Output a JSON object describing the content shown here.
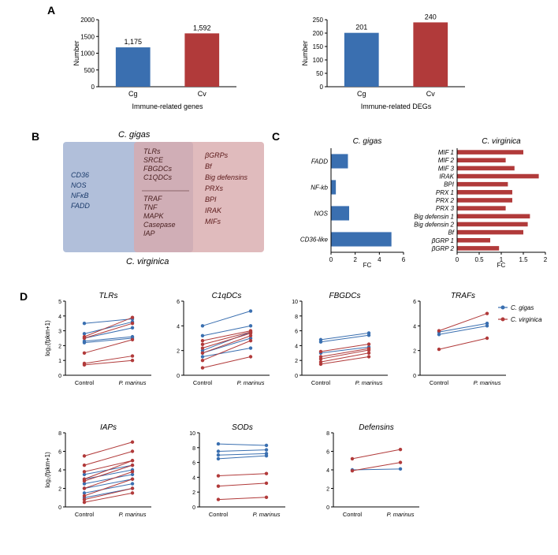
{
  "colors": {
    "blue": "#3a6fb0",
    "red": "#b13a3a",
    "blue_light": "#a9b8d6",
    "red_light": "#d8aaac",
    "overlap": "#b88a9a",
    "text": "#000000",
    "axis": "#000000"
  },
  "panelA": {
    "label": "A",
    "left_chart": {
      "bars": [
        {
          "label": "Cg",
          "value": 1175,
          "value_label": "1,175",
          "color": "#3a6fb0"
        },
        {
          "label": "Cv",
          "value": 1592,
          "value_label": "1,592",
          "color": "#b13a3a"
        }
      ],
      "ylabel": "Number",
      "xlabel": "Immune-related genes",
      "ymax": 2000,
      "yticks": [
        0,
        500,
        1000,
        1500,
        2000
      ]
    },
    "right_chart": {
      "bars": [
        {
          "label": "Cg",
          "value": 201,
          "value_label": "201",
          "color": "#3a6fb0"
        },
        {
          "label": "Cv",
          "value": 240,
          "value_label": "240",
          "color": "#b13a3a"
        }
      ],
      "ylabel": "Number",
      "xlabel": "Immune-related DEGs",
      "ymax": 250,
      "yticks": [
        0,
        50,
        100,
        150,
        200,
        250
      ]
    }
  },
  "panelB": {
    "label": "B",
    "title_left": "C. gigas",
    "title_right": "C. virginica",
    "left_items": [
      "CD36",
      "NOS",
      "NFκB",
      "FADD"
    ],
    "mid_items_top": [
      "TLRs",
      "SRCE",
      "FBGDCs",
      "C1QDCs"
    ],
    "mid_items_bot": [
      "TRAF",
      "TNF",
      "MAPK",
      "Casepase",
      "IAP"
    ],
    "right_items": [
      "βGRPs",
      "Bf",
      "Big defensins",
      "PRXs",
      "BPI",
      "IRAK",
      "MIFs"
    ]
  },
  "panelC": {
    "label": "C",
    "left_chart": {
      "title": "C. gigas",
      "xlabel": "FC",
      "xmax": 6,
      "xticks": [
        0,
        2,
        4,
        6
      ],
      "bars": [
        {
          "label": "FADD",
          "value": 1.4
        },
        {
          "label": "NF-kb",
          "value": 0.4
        },
        {
          "label": "NOS",
          "value": 1.5
        },
        {
          "label": "CD36-like",
          "value": 5.0
        }
      ],
      "color": "#3a6fb0"
    },
    "right_chart": {
      "title": "C. virginica",
      "xlabel": "FC",
      "xmax": 2.0,
      "xticks": [
        0,
        0.5,
        1.0,
        1.5,
        2.0
      ],
      "bars": [
        {
          "label": "MIF 1",
          "value": 1.5
        },
        {
          "label": "MIF 2",
          "value": 1.1
        },
        {
          "label": "MIF 3",
          "value": 1.3
        },
        {
          "label": "IRAK",
          "value": 1.85
        },
        {
          "label": "BPI",
          "value": 1.15
        },
        {
          "label": "PRX 1",
          "value": 1.25
        },
        {
          "label": "PRX 2",
          "value": 1.25
        },
        {
          "label": "PRX 3",
          "value": 1.1
        },
        {
          "label": "Big defensin 1",
          "value": 1.65
        },
        {
          "label": "Big defensin 2",
          "value": 1.6
        },
        {
          "label": "Bf",
          "value": 1.5
        },
        {
          "label": "βGRP 1",
          "value": 0.75
        },
        {
          "label": "βGRP 2",
          "value": 0.95
        }
      ],
      "color": "#b13a3a"
    }
  },
  "panelD": {
    "label": "D",
    "xlabels": [
      "Control",
      "P. marinus"
    ],
    "ylabel": "log₂(fpkm+1)",
    "legend": [
      {
        "label": "C. gigas",
        "color": "#3a6fb0"
      },
      {
        "label": "C. virginica",
        "color": "#b13a3a"
      }
    ],
    "charts": [
      {
        "title": "TLRs",
        "ymax": 5,
        "yticks": [
          0,
          1,
          2,
          3,
          4,
          5
        ],
        "lines": [
          {
            "c": "#3a6fb0",
            "y": [
              3.5,
              3.8
            ]
          },
          {
            "c": "#3a6fb0",
            "y": [
              2.8,
              3.6
            ]
          },
          {
            "c": "#3a6fb0",
            "y": [
              2.5,
              3.2
            ]
          },
          {
            "c": "#3a6fb0",
            "y": [
              2.3,
              2.6
            ]
          },
          {
            "c": "#3a6fb0",
            "y": [
              2.2,
              2.5
            ]
          },
          {
            "c": "#b13a3a",
            "y": [
              2.6,
              3.9
            ]
          },
          {
            "c": "#b13a3a",
            "y": [
              2.5,
              3.5
            ]
          },
          {
            "c": "#b13a3a",
            "y": [
              1.5,
              2.4
            ]
          },
          {
            "c": "#b13a3a",
            "y": [
              0.8,
              1.3
            ]
          },
          {
            "c": "#b13a3a",
            "y": [
              0.7,
              1.0
            ]
          }
        ]
      },
      {
        "title": "C1qDCs",
        "ymax": 6,
        "yticks": [
          0,
          2,
          4,
          6
        ],
        "lines": [
          {
            "c": "#3a6fb0",
            "y": [
              4.0,
              5.2
            ]
          },
          {
            "c": "#3a6fb0",
            "y": [
              3.2,
              4.0
            ]
          },
          {
            "c": "#3a6fb0",
            "y": [
              2.0,
              3.5
            ]
          },
          {
            "c": "#3a6fb0",
            "y": [
              1.8,
              3.0
            ]
          },
          {
            "c": "#3a6fb0",
            "y": [
              1.5,
              2.2
            ]
          },
          {
            "c": "#b13a3a",
            "y": [
              2.8,
              3.6
            ]
          },
          {
            "c": "#b13a3a",
            "y": [
              2.5,
              3.5
            ]
          },
          {
            "c": "#b13a3a",
            "y": [
              2.2,
              3.4
            ]
          },
          {
            "c": "#b13a3a",
            "y": [
              1.8,
              3.2
            ]
          },
          {
            "c": "#b13a3a",
            "y": [
              1.2,
              2.8
            ]
          },
          {
            "c": "#b13a3a",
            "y": [
              0.6,
              1.5
            ]
          }
        ]
      },
      {
        "title": "FBGDCs",
        "ymax": 10,
        "yticks": [
          0,
          2,
          4,
          6,
          8,
          10
        ],
        "lines": [
          {
            "c": "#3a6fb0",
            "y": [
              4.8,
              5.7
            ]
          },
          {
            "c": "#3a6fb0",
            "y": [
              4.5,
              5.4
            ]
          },
          {
            "c": "#3a6fb0",
            "y": [
              3.0,
              3.8
            ]
          },
          {
            "c": "#b13a3a",
            "y": [
              3.2,
              4.2
            ]
          },
          {
            "c": "#b13a3a",
            "y": [
              2.5,
              3.6
            ]
          },
          {
            "c": "#b13a3a",
            "y": [
              2.2,
              3.4
            ]
          },
          {
            "c": "#b13a3a",
            "y": [
              1.8,
              3.0
            ]
          },
          {
            "c": "#b13a3a",
            "y": [
              1.5,
              2.5
            ]
          }
        ]
      },
      {
        "title": "TRAFs",
        "ymax": 6,
        "yticks": [
          0,
          2,
          4,
          6
        ],
        "lines": [
          {
            "c": "#3a6fb0",
            "y": [
              3.5,
              4.2
            ]
          },
          {
            "c": "#3a6fb0",
            "y": [
              3.3,
              4.0
            ]
          },
          {
            "c": "#b13a3a",
            "y": [
              3.6,
              5.0
            ]
          },
          {
            "c": "#b13a3a",
            "y": [
              2.1,
              3.0
            ]
          }
        ]
      },
      {
        "title": "IAPs",
        "ymax": 8,
        "yticks": [
          0,
          2,
          4,
          6,
          8
        ],
        "lines": [
          {
            "c": "#3a6fb0",
            "y": [
              3.5,
              4.5
            ]
          },
          {
            "c": "#3a6fb0",
            "y": [
              3.0,
              4.0
            ]
          },
          {
            "c": "#3a6fb0",
            "y": [
              2.5,
              3.5
            ]
          },
          {
            "c": "#3a6fb0",
            "y": [
              2.0,
              3.0
            ]
          },
          {
            "c": "#3a6fb0",
            "y": [
              1.5,
              2.5
            ]
          },
          {
            "c": "#3a6fb0",
            "y": [
              1.0,
              2.0
            ]
          },
          {
            "c": "#b13a3a",
            "y": [
              5.5,
              7.0
            ]
          },
          {
            "c": "#b13a3a",
            "y": [
              4.5,
              6.0
            ]
          },
          {
            "c": "#b13a3a",
            "y": [
              3.8,
              5.0
            ]
          },
          {
            "c": "#b13a3a",
            "y": [
              3.0,
              5.0
            ]
          },
          {
            "c": "#b13a3a",
            "y": [
              2.8,
              4.5
            ]
          },
          {
            "c": "#b13a3a",
            "y": [
              2.0,
              3.8
            ]
          },
          {
            "c": "#b13a3a",
            "y": [
              1.2,
              3.0
            ]
          },
          {
            "c": "#b13a3a",
            "y": [
              0.8,
              2.0
            ]
          },
          {
            "c": "#b13a3a",
            "y": [
              0.5,
              1.5
            ]
          }
        ]
      },
      {
        "title": "SODs",
        "ymax": 10,
        "yticks": [
          0,
          2,
          4,
          6,
          8,
          10
        ],
        "lines": [
          {
            "c": "#3a6fb0",
            "y": [
              8.5,
              8.3
            ]
          },
          {
            "c": "#3a6fb0",
            "y": [
              7.5,
              7.7
            ]
          },
          {
            "c": "#3a6fb0",
            "y": [
              7.0,
              7.2
            ]
          },
          {
            "c": "#3a6fb0",
            "y": [
              6.5,
              6.9
            ]
          },
          {
            "c": "#b13a3a",
            "y": [
              4.2,
              4.5
            ]
          },
          {
            "c": "#b13a3a",
            "y": [
              2.8,
              3.2
            ]
          },
          {
            "c": "#b13a3a",
            "y": [
              1.0,
              1.3
            ]
          }
        ]
      },
      {
        "title": "Defensins",
        "ymax": 8,
        "yticks": [
          0,
          2,
          4,
          6,
          8
        ],
        "lines": [
          {
            "c": "#3a6fb0",
            "y": [
              4.0,
              4.1
            ]
          },
          {
            "c": "#b13a3a",
            "y": [
              5.2,
              6.2
            ]
          },
          {
            "c": "#b13a3a",
            "y": [
              3.9,
              4.8
            ]
          }
        ]
      }
    ]
  }
}
